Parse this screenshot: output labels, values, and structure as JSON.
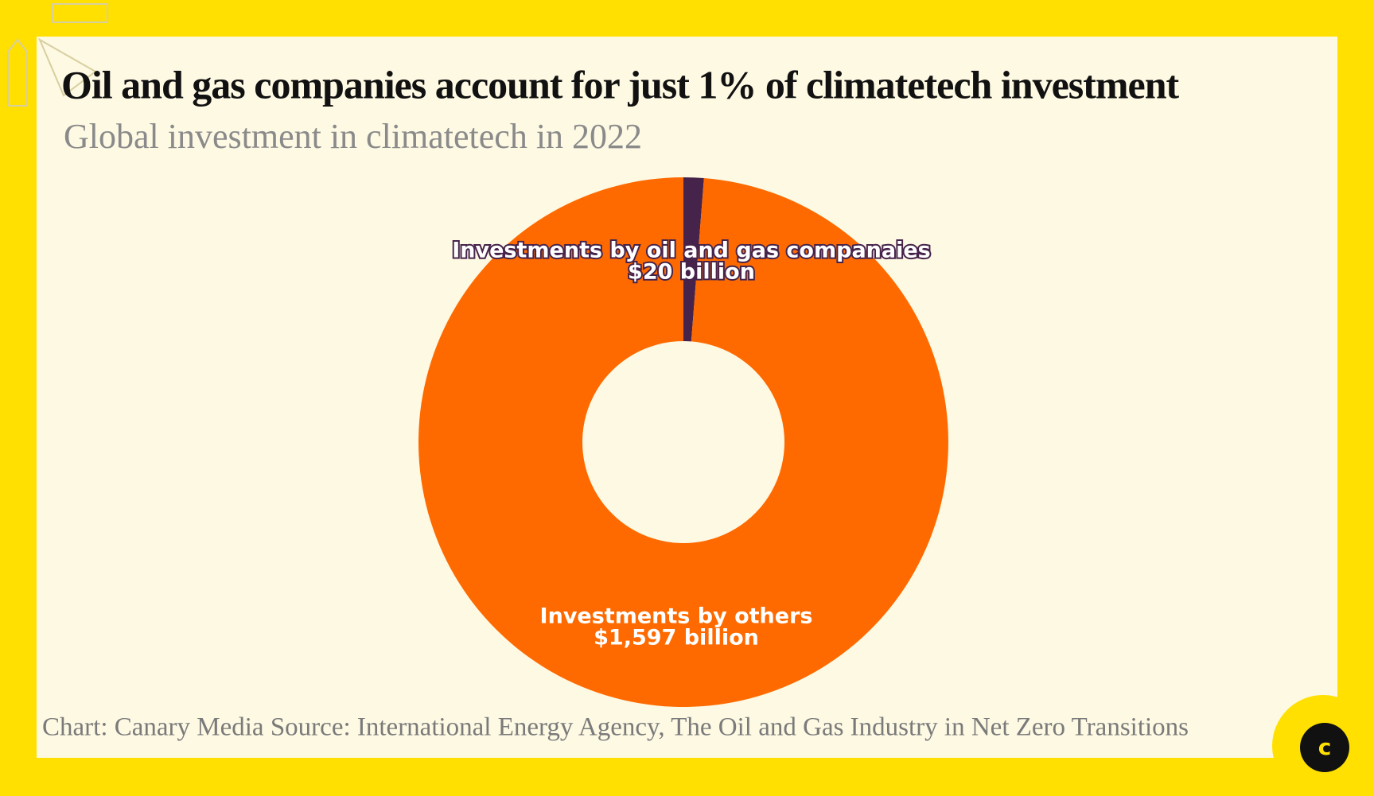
{
  "chart_data": {
    "type": "pie",
    "title": "Oil and gas companies account for just 1% of climatetech investment",
    "subtitle": "Global investment in climatetech in 2022",
    "categories": [
      "Investments by oil and gas companaies",
      "Investments by others"
    ],
    "values": [
      20,
      1597
    ],
    "value_labels": [
      "$20 billion",
      "$1,597 billion"
    ],
    "colors": [
      "#46234a",
      "#ff6a00"
    ],
    "donut": true,
    "source": "Chart: Canary Media Source: International Energy Agency, The Oil and Gas Industry in Net Zero Transitions"
  },
  "logo": "c"
}
